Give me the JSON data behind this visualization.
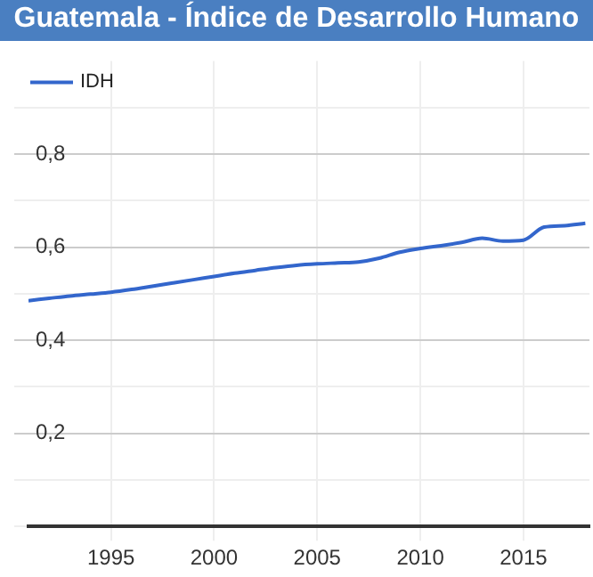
{
  "chart_data": {
    "type": "line",
    "title": "Guatemala - Índice de Desarrollo Humano",
    "x": [
      1991,
      1992,
      1993,
      1994,
      1995,
      1996,
      1997,
      1998,
      1999,
      2000,
      2001,
      2002,
      2003,
      2004,
      2005,
      2006,
      2007,
      2008,
      2009,
      2010,
      2011,
      2012,
      2013,
      2014,
      2015,
      2016,
      2017,
      2018
    ],
    "series": [
      {
        "name": "IDH",
        "color": "#3366cc",
        "values": [
          0.485,
          0.49,
          0.495,
          0.499,
          0.503,
          0.509,
          0.516,
          0.523,
          0.53,
          0.537,
          0.544,
          0.55,
          0.556,
          0.561,
          0.564,
          0.566,
          0.568,
          0.576,
          0.589,
          0.597,
          0.603,
          0.61,
          0.619,
          0.613,
          0.615,
          0.643,
          0.646,
          0.651
        ]
      }
    ],
    "xlim": [
      1991,
      2018.2
    ],
    "xticks": [
      1995,
      2000,
      2005,
      2010,
      2015
    ],
    "ylim": [
      0,
      1
    ],
    "yticks": [
      {
        "value": 0,
        "label": null
      },
      {
        "value": 0.1,
        "label": null
      },
      {
        "value": 0.2,
        "label": "0,2"
      },
      {
        "value": 0.3,
        "label": null
      },
      {
        "value": 0.4,
        "label": "0,4"
      },
      {
        "value": 0.5,
        "label": null
      },
      {
        "value": 0.6,
        "label": "0,6"
      },
      {
        "value": 0.7,
        "label": null
      },
      {
        "value": 0.8,
        "label": "0,8"
      },
      {
        "value": 0.9,
        "label": null
      }
    ],
    "grid": true,
    "legend": "top left",
    "marker": "none",
    "line_style": "solid"
  }
}
